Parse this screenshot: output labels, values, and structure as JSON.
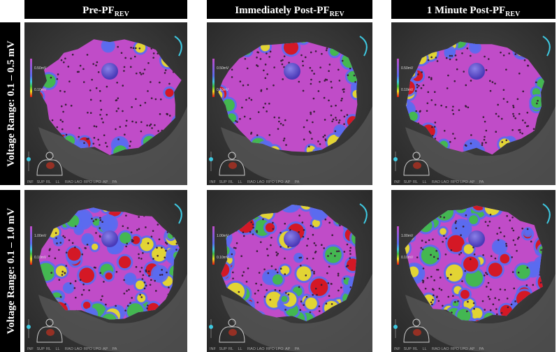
{
  "columns": [
    {
      "title": "Pre-PF",
      "subscript": "REV"
    },
    {
      "title": "Immediately Post-PF",
      "subscript": "REV"
    },
    {
      "title": "1 Minute Post-PF",
      "subscript": "REV"
    }
  ],
  "rows": [
    {
      "label": "Voltage Range: 0.1 – 0.5 mV",
      "scale_high": "0.50mV",
      "scale_low": "0.10mV"
    },
    {
      "label": "Voltage Range: 0.1 – 1.0 mV",
      "scale_high": "1.00mV",
      "scale_low": "0.10mV"
    }
  ],
  "view_buttons": [
    "INF",
    "SUP",
    "RL",
    "LL",
    "RAO",
    "LAO",
    "RPO",
    "LPO",
    "AP",
    "PA"
  ]
}
